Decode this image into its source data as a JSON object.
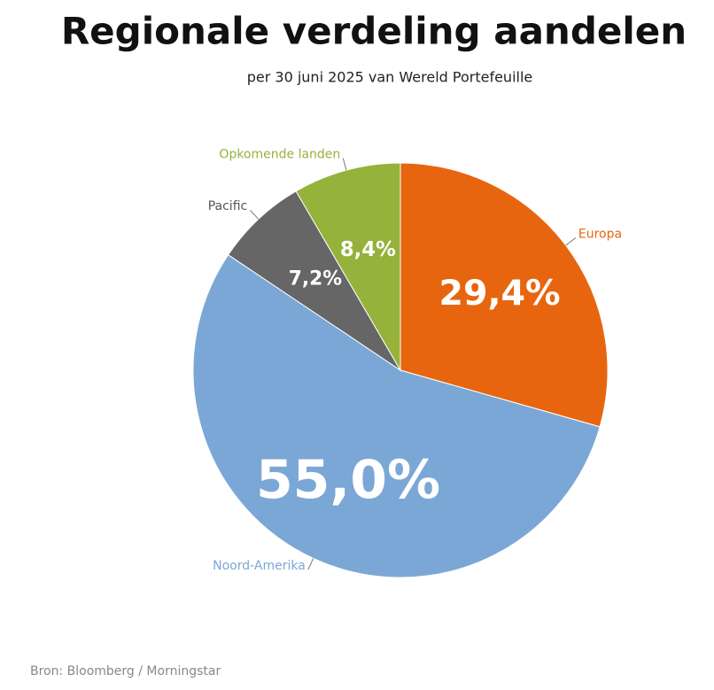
{
  "chart_data": {
    "type": "pie",
    "title": "Regionale verdeling aandelen",
    "subtitle": "per 30 juni 2025 van Wereld Portefeuille",
    "categories": [
      "Europa",
      "Noord-Amerika",
      "Pacific",
      "Opkomende landen"
    ],
    "values": [
      29.4,
      55.0,
      7.2,
      8.4
    ],
    "value_labels": [
      "29,4%",
      "55,0%",
      "7,2%",
      "8,4%"
    ],
    "colors": [
      "#e8650f",
      "#7ba7d6",
      "#666666",
      "#95b23a"
    ],
    "label_colors": [
      "#e8650f",
      "#7ba7d6",
      "#555555",
      "#95b23a"
    ],
    "source": "Bron: Bloomberg / Morningstar"
  }
}
